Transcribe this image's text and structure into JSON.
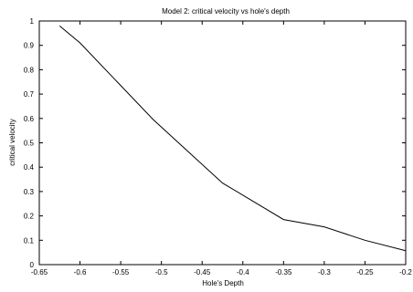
{
  "chart_data": {
    "type": "line",
    "title": "Model 2: critical velocity vs hole's depth",
    "xlabel": "Hole's Depth",
    "ylabel": "critical velocity",
    "xlim": [
      -0.65,
      -0.2
    ],
    "ylim": [
      0,
      1
    ],
    "xticks": [
      -0.65,
      -0.6,
      -0.55,
      -0.5,
      -0.45,
      -0.4,
      -0.35,
      -0.3,
      -0.25,
      -0.2
    ],
    "xtick_labels": [
      "-0.65",
      "-0.6",
      "-0.55",
      "-0.5",
      "-0.45",
      "-0.4",
      "-0.35",
      "-0.3",
      "-0.25",
      "-0.2"
    ],
    "yticks": [
      0,
      0.1,
      0.2,
      0.3,
      0.4,
      0.5,
      0.6,
      0.7,
      0.8,
      0.9,
      1
    ],
    "ytick_labels": [
      "0",
      "0.1",
      "0.2",
      "0.3",
      "0.4",
      "0.5",
      "0.6",
      "0.7",
      "0.8",
      "0.9",
      "1"
    ],
    "grid": false,
    "legend": "none",
    "series": [
      {
        "x": [
          -0.625,
          -0.6,
          -0.51,
          -0.425,
          -0.35,
          -0.3,
          -0.25,
          -0.2
        ],
        "y": [
          0.98,
          0.91,
          0.595,
          0.335,
          0.185,
          0.155,
          0.1,
          0.057
        ],
        "color": "#000000"
      }
    ]
  }
}
